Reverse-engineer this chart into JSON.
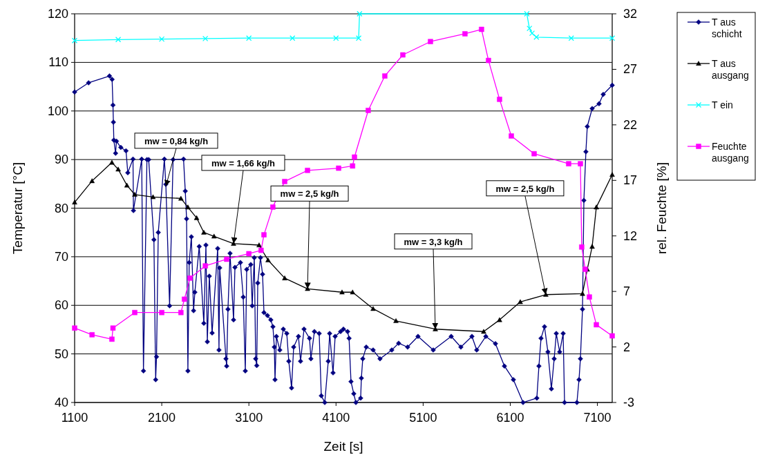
{
  "chart_data": {
    "type": "line",
    "xlabel": "Zeit [s]",
    "ylabel": "Temperatur [°C]",
    "y2label": "rel. Feuchte [%]",
    "xlim": [
      1100,
      7270
    ],
    "xticks": [
      1100,
      2100,
      3100,
      4100,
      5100,
      6100,
      7100
    ],
    "ylim": [
      40,
      120
    ],
    "yticks": [
      40,
      50,
      60,
      70,
      80,
      90,
      100,
      110,
      120
    ],
    "y2lim": [
      -3,
      32
    ],
    "y2ticks": [
      -3,
      2,
      7,
      12,
      17,
      22,
      27,
      32
    ],
    "grid": "y",
    "legend": "right",
    "annotations": [
      {
        "text": "mw = 0,84 kg/h",
        "x": 2147,
        "y": 84.5
      },
      {
        "text": "mw = 1,66 kg/h",
        "x": 2924,
        "y": 72.7
      },
      {
        "text": "mw = 2,5 kg/h",
        "x": 3773,
        "y": 63.4
      },
      {
        "text": "mw = 3,3 kg/h",
        "x": 5240,
        "y": 55.1
      },
      {
        "text": "mw = 2,5 kg/h",
        "x": 6508,
        "y": 62.2
      }
    ],
    "series": [
      {
        "name": "T aus schicht",
        "color": "#000080",
        "marker": "diamond",
        "x": [
          1100,
          1260,
          1500,
          1530,
          1540,
          1545,
          1550,
          1570,
          1580,
          1630,
          1690,
          1710,
          1770,
          1775,
          1870,
          1890,
          1930,
          1950,
          2010,
          2030,
          2040,
          2060,
          2130,
          2147,
          2190,
          2230,
          2350,
          2370,
          2385,
          2400,
          2415,
          2440,
          2465,
          2480,
          2530,
          2583,
          2607,
          2623,
          2646,
          2678,
          2742,
          2757,
          2765,
          2837,
          2845,
          2860,
          2884,
          2924,
          2940,
          3003,
          3035,
          3059,
          3075,
          3122,
          3138,
          3162,
          3178,
          3190,
          3202,
          3233,
          3257,
          3273,
          3313,
          3352,
          3376,
          3392,
          3400,
          3416,
          3455,
          3495,
          3535,
          3558,
          3590,
          3614,
          3669,
          3693,
          3733,
          3796,
          3812,
          3852,
          3907,
          3931,
          3971,
          4011,
          4027,
          4066,
          4090,
          4153,
          4185,
          4233,
          4250,
          4272,
          4304,
          4328,
          4383,
          4391,
          4407,
          4447,
          4526,
          4605,
          4740,
          4819,
          4922,
          5041,
          5216,
          5422,
          5533,
          5660,
          5715,
          5819,
          5930,
          6033,
          6136,
          6247,
          6405,
          6429,
          6453,
          6493,
          6532,
          6572,
          6604,
          6628,
          6667,
          6707,
          6723,
          6865,
          6889,
          6905,
          6929,
          6945,
          6968,
          6984,
          7040,
          7119,
          7167,
          7270
        ],
        "values": [
          103.9,
          105.8,
          107.2,
          106.5,
          101.2,
          97.7,
          94,
          91.3,
          93.8,
          92.5,
          91.8,
          87.3,
          90.1,
          79.5,
          90.1,
          46.5,
          90,
          90,
          73.5,
          44.7,
          49.4,
          75,
          90.1,
          84.9,
          59.9,
          90,
          90.1,
          83.5,
          77.8,
          46.5,
          68.8,
          74.1,
          58.9,
          62.7,
          72.1,
          56.3,
          72.4,
          52.5,
          66,
          54.3,
          71.7,
          50.8,
          67.7,
          49,
          47.5,
          59.2,
          70.7,
          57,
          67.8,
          68.8,
          61.7,
          46.5,
          67.4,
          68.4,
          59.9,
          69.8,
          49,
          47.6,
          64.6,
          69.8,
          66.4,
          58.5,
          57.9,
          57,
          55.6,
          51.4,
          44.7,
          53.6,
          50.8,
          55.1,
          54.2,
          48.5,
          43,
          51.4,
          53.6,
          48.5,
          55.1,
          53.2,
          49,
          54.6,
          54.2,
          41.4,
          40,
          48.5,
          54.2,
          46.1,
          53.6,
          54.6,
          55.1,
          54.6,
          53.2,
          44.3,
          41.8,
          40,
          40.9,
          45,
          49,
          51.4,
          50.8,
          49,
          50.8,
          52.2,
          51.4,
          53.6,
          50.8,
          53.6,
          51.4,
          53.6,
          50.8,
          53.6,
          52.1,
          47.5,
          44.7,
          40,
          40.9,
          47.5,
          53.2,
          55.6,
          50.4,
          42.8,
          49,
          54.2,
          50.4,
          54.2,
          40,
          40,
          44.7,
          49,
          59.2,
          81.6,
          91.6,
          96.8,
          100.5,
          101.5,
          103.4,
          105.3
        ]
      },
      {
        "name": "T aus ausgang",
        "color": "#000000",
        "marker": "triangle",
        "x": [
          1100,
          1300,
          1528,
          1600,
          1700,
          1790,
          2000,
          2320,
          2400,
          2500,
          2583,
          2700,
          2924,
          3217,
          3320,
          3511,
          3773,
          4169,
          4290,
          4526,
          4788,
          5240,
          5795,
          5977,
          6215,
          6508,
          6929,
          6984,
          7040,
          7088,
          7270
        ],
        "values": [
          81.2,
          85.6,
          89.4,
          88,
          84.7,
          82.8,
          82.3,
          82,
          80.2,
          78,
          75,
          74.2,
          72.7,
          72.4,
          69.3,
          65.6,
          63.4,
          62.7,
          62.7,
          59.3,
          56.8,
          55.1,
          54.6,
          57,
          60.7,
          62.2,
          62.4,
          67.4,
          72.1,
          80.2,
          86.9
        ]
      },
      {
        "name": "T ein",
        "color": "#00ffff",
        "marker": "cross",
        "x": [
          1100,
          1600,
          2100,
          2600,
          3100,
          3600,
          4100,
          4360,
          4370,
          6290,
          6320,
          6350,
          6400,
          6800,
          7270
        ],
        "values": [
          114.5,
          114.7,
          114.8,
          114.9,
          115,
          115,
          115,
          115,
          120,
          120,
          117,
          116,
          115.2,
          115,
          115
        ]
      },
      {
        "name": "Feuchte ausgang",
        "color": "#ff00ff",
        "marker": "square",
        "axis": "y2",
        "x": [
          1100,
          1300,
          1528,
          1540,
          1790,
          2100,
          2320,
          2360,
          2424,
          2600,
          2845,
          3100,
          3240,
          3273,
          3375,
          3511,
          3773,
          4130,
          4290,
          4312,
          4470,
          4660,
          4867,
          5184,
          5580,
          5770,
          5850,
          5977,
          6112,
          6374,
          6770,
          6905,
          6920,
          6960,
          7008,
          7088,
          7270
        ],
        "values": [
          3.7,
          3.1,
          2.7,
          3.7,
          5.1,
          5.1,
          5.1,
          6.3,
          8.2,
          9.3,
          9.9,
          10.4,
          10.7,
          12.1,
          14.6,
          16.9,
          17.9,
          18.1,
          18.3,
          19.1,
          23.3,
          26.4,
          28.3,
          29.5,
          30.2,
          30.6,
          27.8,
          24.3,
          21,
          19.4,
          18.5,
          18.5,
          11,
          9,
          6.5,
          4,
          3
        ]
      }
    ]
  }
}
